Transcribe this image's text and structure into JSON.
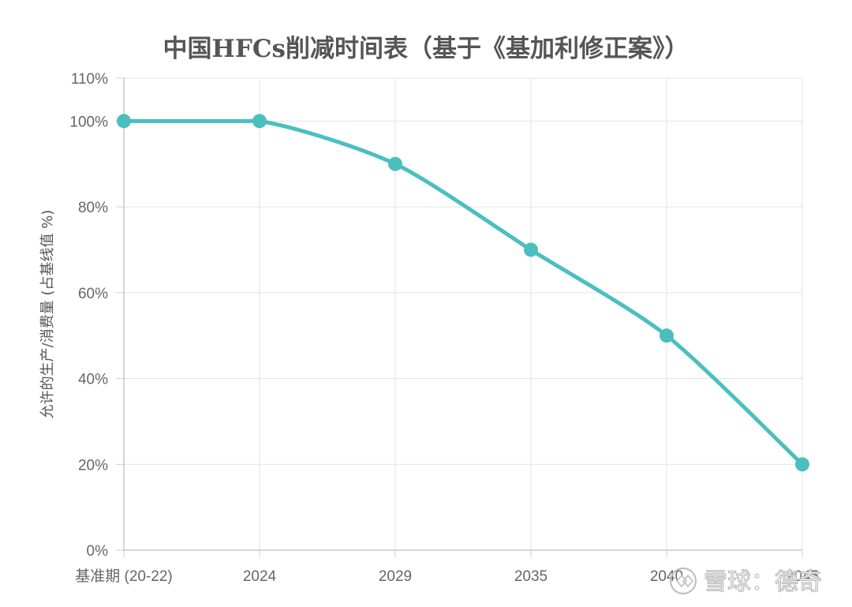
{
  "chart_data": {
    "type": "line",
    "title": "中国HFCs削减时间表（基于《基加利修正案》）",
    "ylabel": "允许的生产/消费量 (占基线值 %)",
    "xlabel": "",
    "categories": [
      "基准期 (20-22)",
      "2024",
      "2029",
      "2035",
      "2040",
      "2045"
    ],
    "series": [
      {
        "values": [
          100,
          100,
          90,
          70,
          50,
          20
        ]
      }
    ],
    "ylim": [
      0,
      110
    ],
    "yticks": [
      "0%",
      "20%",
      "40%",
      "60%",
      "80%",
      "100%",
      "110%"
    ],
    "ytick_values": [
      0,
      20,
      40,
      60,
      80,
      100,
      110
    ],
    "grid": true,
    "line_color": "#4BBFC0"
  },
  "watermark": "雪球：德奇"
}
